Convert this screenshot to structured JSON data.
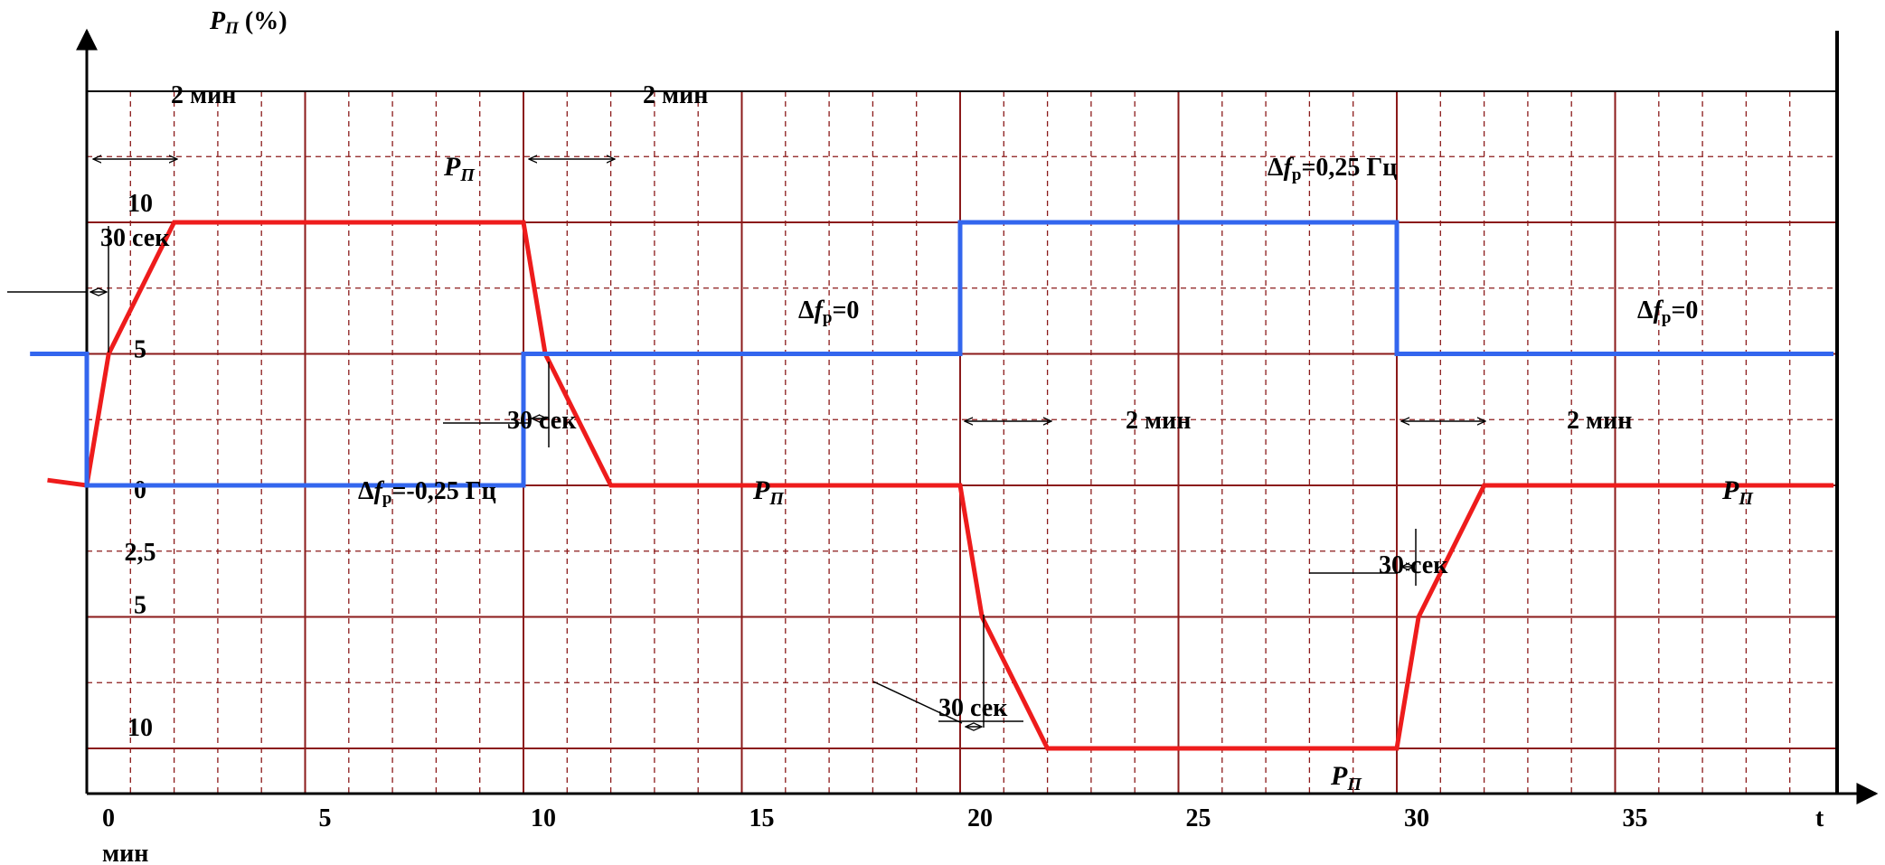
{
  "chart_data": {
    "type": "line",
    "title": "",
    "y_axis_label": {
      "symbol": "P",
      "sub": "П",
      "unit": " (%)"
    },
    "x_axis_label": "t",
    "x_unit_label": "мин",
    "xlim": [
      0,
      40
    ],
    "grid": true,
    "x_ticks": [
      {
        "value": 0,
        "label": "0"
      },
      {
        "value": 5,
        "label": "5"
      },
      {
        "value": 10,
        "label": "10"
      },
      {
        "value": 15,
        "label": "15"
      },
      {
        "value": 20,
        "label": "20"
      },
      {
        "value": 25,
        "label": "25"
      },
      {
        "value": 30,
        "label": "30"
      },
      {
        "value": 35,
        "label": "35"
      }
    ],
    "y_ticks": [
      {
        "value": 10,
        "label": "10"
      },
      {
        "value": 5,
        "label": "5"
      },
      {
        "value": 0,
        "label": "0"
      },
      {
        "value": -2.5,
        "label": "2,5"
      },
      {
        "value": -5,
        "label": "5"
      },
      {
        "value": -10,
        "label": "10"
      }
    ],
    "series": [
      {
        "name": "P_П",
        "color": "#ee1c1c",
        "x": [
          -0.9,
          0,
          0.5,
          2,
          10,
          10.5,
          12,
          20,
          20.5,
          22,
          30,
          30.5,
          32,
          40
        ],
        "y": [
          0.2,
          0,
          5,
          10,
          10,
          5,
          0,
          0,
          -5,
          -10,
          -10,
          -5,
          0,
          0
        ]
      },
      {
        "name": "Δf_р",
        "color": "#3366ee",
        "x": [
          -1.3,
          0,
          0,
          10,
          10,
          20,
          20,
          30,
          30,
          40
        ],
        "y": [
          5,
          5,
          0,
          0,
          5,
          5,
          10,
          10,
          5,
          5
        ]
      }
    ],
    "annotations": {
      "durations": [
        "2 мин",
        "2 мин",
        "2 мин",
        "2 мин"
      ],
      "intervals": [
        "30 сек",
        "30 сек",
        "30 сек",
        "30 сек"
      ],
      "curve_labels": [
        "P",
        "П",
        "P",
        "П",
        "P",
        "П",
        "P",
        "П"
      ],
      "freq_labels": [
        {
          "pre": "Δ",
          "f": "f",
          "sub": "р",
          "post": "=-0,25 Гц"
        },
        {
          "pre": "Δ",
          "f": "f",
          "sub": "р",
          "post": "=0"
        },
        {
          "pre": "Δ",
          "f": "f",
          "sub": "р",
          "post": "=0,25 Гц"
        },
        {
          "pre": "Δ",
          "f": "f",
          "sub": "р",
          "post": "=0"
        }
      ]
    }
  }
}
